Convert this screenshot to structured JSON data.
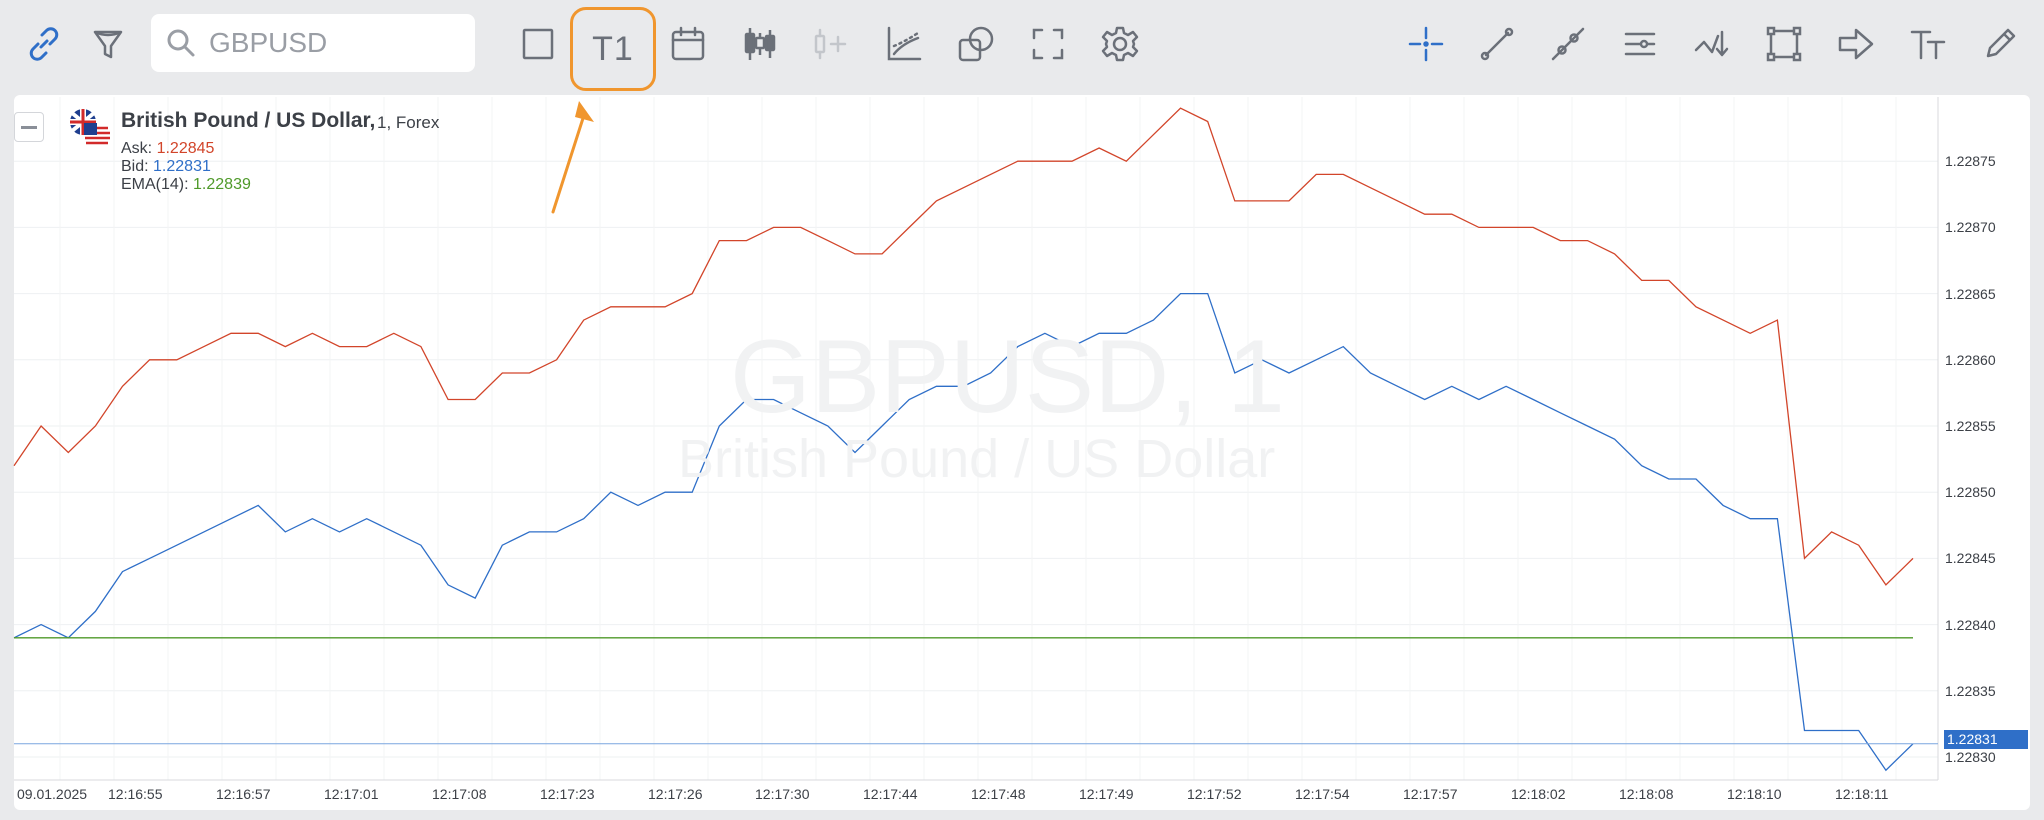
{
  "toolbar": {
    "left_icons": [
      "link-icon",
      "filter-icon"
    ],
    "search": {
      "placeholder": "GBPUSD",
      "value": ""
    },
    "middle_icons": [
      "square-icon",
      "calendar-icon",
      "candlestick-icon",
      "add-indicator-icon",
      "chart-indicator-icon",
      "overlay-icon",
      "fullscreen-icon",
      "gear-icon"
    ],
    "timeframe_label": "T1",
    "right_icons": [
      "crosshair-icon",
      "trendline-icon",
      "ray-icon",
      "parallel-lines-icon",
      "arrow-down-icon",
      "rectangle-icon",
      "arrow-right-icon",
      "text-icon",
      "brush-icon"
    ],
    "colors": {
      "icon": "#6b7079",
      "active_icon": "#2f6fc8",
      "highlight": "#f0962e"
    }
  },
  "legend": {
    "title": "British Pound / US Dollar,",
    "timeframe": "1,",
    "market": "Forex",
    "ask_label": "Ask:",
    "ask_value": "1.22845",
    "bid_label": "Bid:",
    "bid_value": "1.22831",
    "ema_label": "EMA(14):",
    "ema_value": "1.22839"
  },
  "watermark": {
    "symbol": "GBPUSD, 1",
    "name": "British Pound / US Dollar"
  },
  "current_price": "1.22831",
  "chart_data": {
    "type": "line",
    "ylim": [
      1.22828,
      1.2288
    ],
    "price_ticks": [
      "1.22875",
      "1.22870",
      "1.22865",
      "1.22860",
      "1.22855",
      "1.22850",
      "1.22845",
      "1.22840",
      "1.22835",
      "1.22830"
    ],
    "time_ticks": [
      "09.01.2025",
      "12:16:55",
      "12:16:57",
      "12:17:01",
      "12:17:08",
      "12:17:23",
      "12:17:26",
      "12:17:30",
      "12:17:44",
      "12:17:48",
      "12:17:49",
      "12:17:52",
      "12:17:54",
      "12:17:57",
      "12:18:02",
      "12:18:08",
      "12:18:10",
      "12:18:11"
    ],
    "series": [
      {
        "name": "Ask",
        "color": "#d2452a",
        "values": [
          1.22852,
          1.22855,
          1.22853,
          1.22855,
          1.22858,
          1.2286,
          1.2286,
          1.22861,
          1.22862,
          1.22862,
          1.22861,
          1.22862,
          1.22861,
          1.22861,
          1.22862,
          1.22861,
          1.22857,
          1.22857,
          1.22859,
          1.22859,
          1.2286,
          1.22863,
          1.22864,
          1.22864,
          1.22864,
          1.22865,
          1.22869,
          1.22869,
          1.2287,
          1.2287,
          1.22869,
          1.22868,
          1.22868,
          1.2287,
          1.22872,
          1.22873,
          1.22874,
          1.22875,
          1.22875,
          1.22875,
          1.22876,
          1.22875,
          1.22877,
          1.22879,
          1.22878,
          1.22872,
          1.22872,
          1.22872,
          1.22874,
          1.22874,
          1.22873,
          1.22872,
          1.22871,
          1.22871,
          1.2287,
          1.2287,
          1.2287,
          1.22869,
          1.22869,
          1.22868,
          1.22866,
          1.22866,
          1.22864,
          1.22863,
          1.22862,
          1.22863,
          1.22845,
          1.22847,
          1.22846,
          1.22843,
          1.22845
        ]
      },
      {
        "name": "Bid",
        "color": "#2f6fc8",
        "values": [
          1.22839,
          1.2284,
          1.22839,
          1.22841,
          1.22844,
          1.22845,
          1.22846,
          1.22847,
          1.22848,
          1.22849,
          1.22847,
          1.22848,
          1.22847,
          1.22848,
          1.22847,
          1.22846,
          1.22843,
          1.22842,
          1.22846,
          1.22847,
          1.22847,
          1.22848,
          1.2285,
          1.22849,
          1.2285,
          1.2285,
          1.22855,
          1.22857,
          1.22857,
          1.22856,
          1.22855,
          1.22853,
          1.22855,
          1.22857,
          1.22858,
          1.22858,
          1.22859,
          1.22861,
          1.22862,
          1.22861,
          1.22862,
          1.22862,
          1.22863,
          1.22865,
          1.22865,
          1.22859,
          1.2286,
          1.22859,
          1.2286,
          1.22861,
          1.22859,
          1.22858,
          1.22857,
          1.22858,
          1.22857,
          1.22858,
          1.22857,
          1.22856,
          1.22855,
          1.22854,
          1.22852,
          1.22851,
          1.22851,
          1.22849,
          1.22848,
          1.22848,
          1.22832,
          1.22832,
          1.22832,
          1.22829,
          1.22831
        ]
      },
      {
        "name": "EMA(14)",
        "color": "#4f9a2a",
        "values": [
          1.22839,
          1.22839,
          1.22839,
          1.22839,
          1.22839,
          1.22839,
          1.22839,
          1.22839,
          1.22839,
          1.22839,
          1.22839,
          1.22839,
          1.22839,
          1.22839,
          1.22839,
          1.22839,
          1.22839,
          1.22839,
          1.22839,
          1.22839,
          1.22839,
          1.22839,
          1.22839,
          1.22839,
          1.22839,
          1.22839,
          1.22839,
          1.22839,
          1.22839,
          1.22839,
          1.22839,
          1.22839,
          1.22839,
          1.22839,
          1.22839,
          1.22839,
          1.22839,
          1.22839,
          1.22839,
          1.22839,
          1.22839,
          1.22839,
          1.22839,
          1.22839,
          1.22839,
          1.22839,
          1.22839,
          1.22839,
          1.22839,
          1.22839,
          1.22839,
          1.22839,
          1.22839,
          1.22839,
          1.22839,
          1.22839,
          1.22839,
          1.22839,
          1.22839,
          1.22839,
          1.22839,
          1.22839,
          1.22839,
          1.22839,
          1.22839,
          1.22839,
          1.22839,
          1.22839,
          1.22839,
          1.22839,
          1.22839
        ]
      }
    ],
    "current_price_line": 1.22831,
    "grid": true
  }
}
